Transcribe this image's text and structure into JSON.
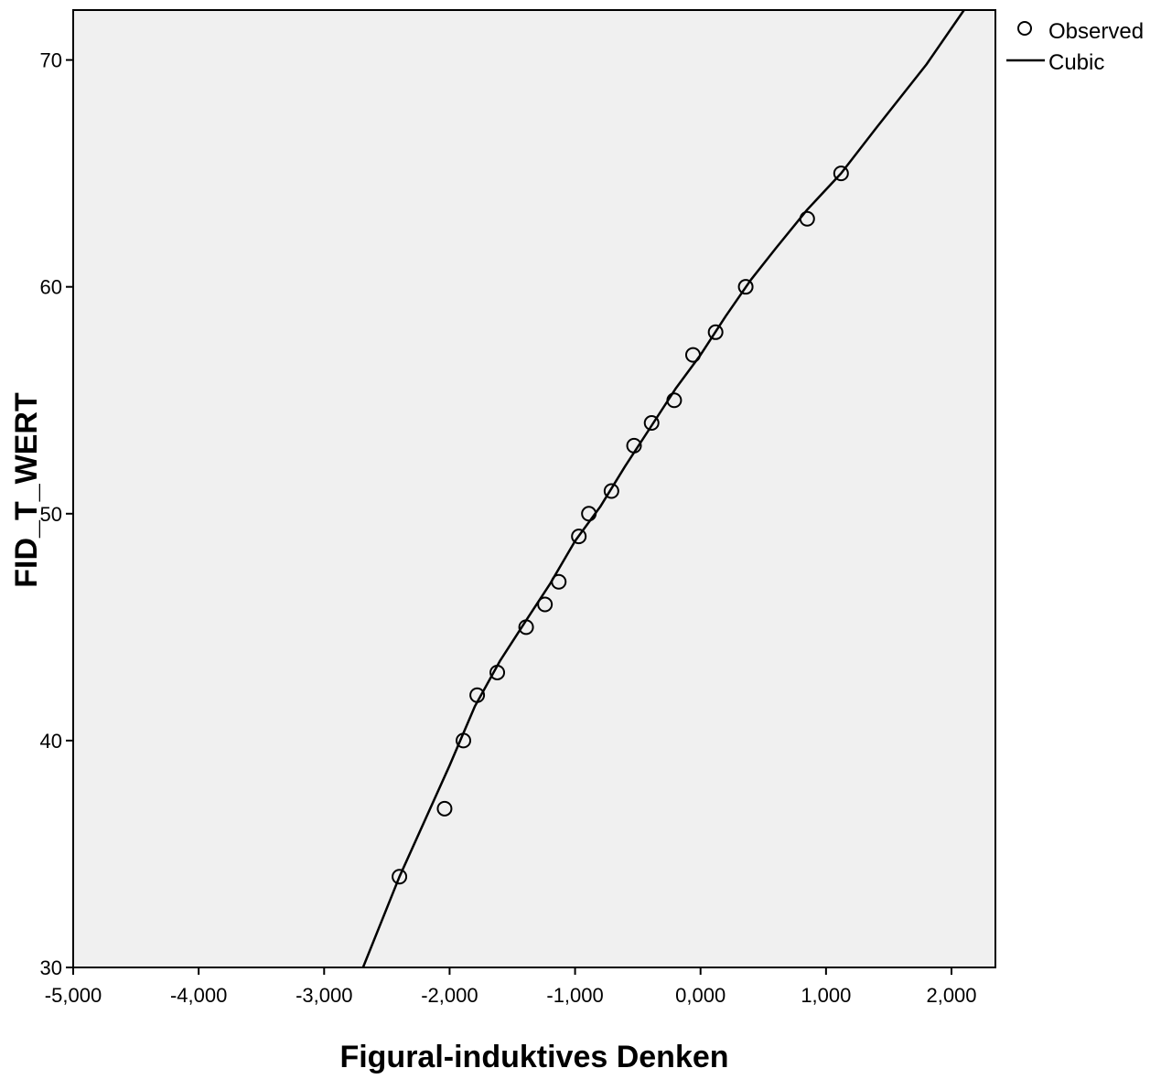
{
  "chart_data": {
    "type": "scatter",
    "title": "",
    "xlabel": "Figural-induktives Denken",
    "ylabel": "FID_T_WERT",
    "xlim": [
      -5.0,
      2.35
    ],
    "ylim": [
      30,
      72.2
    ],
    "x_ticks": [
      -5,
      -4,
      -3,
      -2,
      -1,
      0,
      1,
      2
    ],
    "x_tick_labels": [
      "-5,000",
      "-4,000",
      "-3,000",
      "-2,000",
      "-1,000",
      "0,000",
      "1,000",
      "2,000"
    ],
    "y_ticks": [
      30,
      40,
      50,
      60,
      70
    ],
    "y_tick_labels": [
      "30",
      "40",
      "50",
      "60",
      "70"
    ],
    "grid": false,
    "legend_position": "top-right",
    "colors": {
      "plot_background": "#f0f0f0",
      "line": "#000000",
      "marker": "#000000"
    },
    "series": [
      {
        "name": "Observed",
        "kind": "points",
        "x": [
          -2.4,
          -2.04,
          -1.89,
          -1.78,
          -1.62,
          -1.39,
          -1.24,
          -1.13,
          -0.97,
          -0.89,
          -0.71,
          -0.53,
          -0.39,
          -0.21,
          -0.06,
          0.12,
          0.36,
          0.85,
          1.12
        ],
        "y": [
          34,
          37,
          40,
          42,
          43,
          45,
          46,
          47,
          49,
          50,
          51,
          53,
          54,
          55,
          57,
          58,
          60,
          63,
          65
        ]
      },
      {
        "name": "Cubic",
        "kind": "line",
        "x": [
          -2.69,
          -2.4,
          -2.0,
          -1.8,
          -1.6,
          -1.39,
          -1.2,
          -1.0,
          -0.8,
          -0.6,
          -0.4,
          -0.2,
          0.0,
          0.2,
          0.4,
          0.6,
          0.85,
          1.12,
          1.4,
          1.8,
          2.1
        ],
        "y": [
          30.0,
          34.0,
          38.9,
          41.5,
          43.5,
          45.3,
          46.9,
          48.8,
          50.3,
          52.1,
          53.8,
          55.5,
          57.0,
          58.7,
          60.3,
          61.7,
          63.4,
          65.0,
          67.0,
          69.8,
          72.2
        ]
      }
    ]
  }
}
